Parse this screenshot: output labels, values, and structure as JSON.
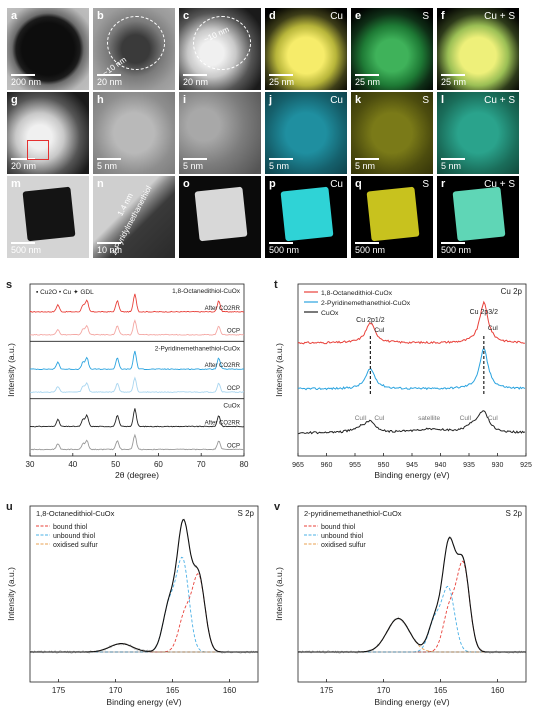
{
  "tiles": [
    {
      "id": "a",
      "scale": "200 nm",
      "element": "",
      "type": "tem-dark"
    },
    {
      "id": "b",
      "scale": "20 nm",
      "element": "",
      "type": "tem-zoom"
    },
    {
      "id": "c",
      "scale": "20 nm",
      "element": "",
      "type": "haadf"
    },
    {
      "id": "d",
      "scale": "25 nm",
      "element": "Cu",
      "type": "map-yellow"
    },
    {
      "id": "e",
      "scale": "25 nm",
      "element": "S",
      "type": "map-green"
    },
    {
      "id": "f",
      "scale": "25 nm",
      "element": "Cu + S",
      "type": "map-mix"
    },
    {
      "id": "g",
      "scale": "20 nm",
      "element": "",
      "type": "haadf"
    },
    {
      "id": "h",
      "scale": "5 nm",
      "element": "",
      "type": "haadf-zoom"
    },
    {
      "id": "i",
      "scale": "5 nm",
      "element": "",
      "type": "haadf-zoom2"
    },
    {
      "id": "j",
      "scale": "5 nm",
      "element": "Cu",
      "type": "map-cyan"
    },
    {
      "id": "k",
      "scale": "5 nm",
      "element": "S",
      "type": "map-olive"
    },
    {
      "id": "l",
      "scale": "5 nm",
      "element": "Cu + S",
      "type": "map-cymix"
    },
    {
      "id": "m",
      "scale": "500 nm",
      "element": "",
      "type": "tem-cube"
    },
    {
      "id": "n",
      "scale": "10 nm",
      "element": "",
      "type": "tem-shell"
    },
    {
      "id": "o",
      "scale": "",
      "element": "",
      "type": "haadf-cube"
    },
    {
      "id": "p",
      "scale": "500 nm",
      "element": "Cu",
      "type": "map-cube-cyan"
    },
    {
      "id": "q",
      "scale": "500 nm",
      "element": "S",
      "type": "map-cube-yellow"
    },
    {
      "id": "r",
      "scale": "500 nm",
      "element": "Cu + S",
      "type": "map-cube-mix"
    }
  ],
  "annotations": {
    "b_shell": "~10 nm",
    "c_shell": "~10 nm",
    "n_thickness": "1.4 nm",
    "n_molecule": "2-Pyridylmethanethiol"
  },
  "chart_data": [
    {
      "panel": "s",
      "type": "line",
      "xlabel": "2θ (degree)",
      "ylabel": "Intensity (a.u.)",
      "xlim": [
        30,
        80
      ],
      "xticks": [
        30,
        40,
        50,
        60,
        70,
        80
      ],
      "legend": [
        "Cu2O",
        "Cu",
        "GDL"
      ],
      "groups": [
        {
          "name": "1,8-Octanedithiol-CuOx",
          "traces": [
            {
              "label": "After CO2RR",
              "color": "#e8413a"
            },
            {
              "label": "OCP",
              "color": "#f4a8a4"
            }
          ]
        },
        {
          "name": "2-Pyridinemethanethiol-CuOx",
          "traces": [
            {
              "label": "After CO2RR",
              "color": "#2aa3df"
            },
            {
              "label": "OCP",
              "color": "#a9d6f0"
            }
          ]
        },
        {
          "name": "CuOx",
          "traces": [
            {
              "label": "After CO2RR",
              "color": "#222222"
            },
            {
              "label": "OCP",
              "color": "#999999"
            }
          ]
        }
      ],
      "peaks_2theta": {
        "Cu2O": [
          36.5,
          42.4
        ],
        "Cu": [
          43.3,
          50.4,
          74.1
        ],
        "GDL": [
          54.5
        ]
      }
    },
    {
      "panel": "t",
      "type": "line",
      "title": "Cu 2p",
      "xlabel": "Binding energy (eV)",
      "ylabel": "Intensity (a.u.)",
      "xlim": [
        965,
        925
      ],
      "xticks": [
        965,
        960,
        955,
        950,
        945,
        940,
        935,
        930,
        925
      ],
      "series": [
        {
          "name": "1,8-Octanedithiol-CuOx",
          "color": "#e8413a"
        },
        {
          "name": "2-Pyridinemethanethiol-CuOx",
          "color": "#2aa3df"
        },
        {
          "name": "CuOx",
          "color": "#222222"
        }
      ],
      "labels": [
        "Cu 2p1/2",
        "Cu 2p3/2",
        "CuI",
        "CuII",
        "satellite"
      ],
      "peaks": {
        "Cu 2p1/2": 952.3,
        "Cu 2p3/2": 932.4,
        "CuII_2p1/2": 954.0,
        "CuII_2p3/2": 934.2,
        "satellite": 942.0
      }
    },
    {
      "panel": "u",
      "type": "line",
      "name": "1,8-Octanedithiol-CuOx",
      "title": "S 2p",
      "xlabel": "Binding energy (eV)",
      "ylabel": "Intensity (a.u.)",
      "xlim": [
        177.5,
        157.5
      ],
      "xticks": [
        175,
        170,
        165,
        160
      ],
      "components": [
        {
          "name": "bound thiol",
          "color": "#e8413a",
          "peaks": [
            {
              "center": 162.7,
              "height": 0.62
            },
            {
              "center": 163.9,
              "height": 0.31
            }
          ]
        },
        {
          "name": "unbound thiol",
          "color": "#4ab0e6",
          "peaks": [
            {
              "center": 164.1,
              "height": 0.75
            },
            {
              "center": 165.3,
              "height": 0.38
            }
          ]
        },
        {
          "name": "oxidised sulfur",
          "color": "#e8a050",
          "peaks": [
            {
              "center": 169.5,
              "height": 0.07
            }
          ]
        }
      ]
    },
    {
      "panel": "v",
      "type": "line",
      "name": "2-pyridinemethanethiol-CuOx",
      "title": "S 2p",
      "xlabel": "Binding energy (eV)",
      "ylabel": "Intensity (a.u.)",
      "xlim": [
        177.5,
        157.5
      ],
      "xticks": [
        175,
        170,
        165,
        160
      ],
      "components": [
        {
          "name": "bound thiol",
          "color": "#e8413a",
          "peaks": [
            {
              "center": 163.0,
              "height": 0.72
            },
            {
              "center": 164.2,
              "height": 0.36
            }
          ]
        },
        {
          "name": "unbound thiol",
          "color": "#4ab0e6",
          "peaks": [
            {
              "center": 164.3,
              "height": 0.52
            },
            {
              "center": 165.5,
              "height": 0.26
            }
          ]
        },
        {
          "name": "oxidised sulfur",
          "color": "#e8a050",
          "peaks": [
            {
              "center": 168.7,
              "height": 0.28
            }
          ]
        }
      ]
    }
  ]
}
